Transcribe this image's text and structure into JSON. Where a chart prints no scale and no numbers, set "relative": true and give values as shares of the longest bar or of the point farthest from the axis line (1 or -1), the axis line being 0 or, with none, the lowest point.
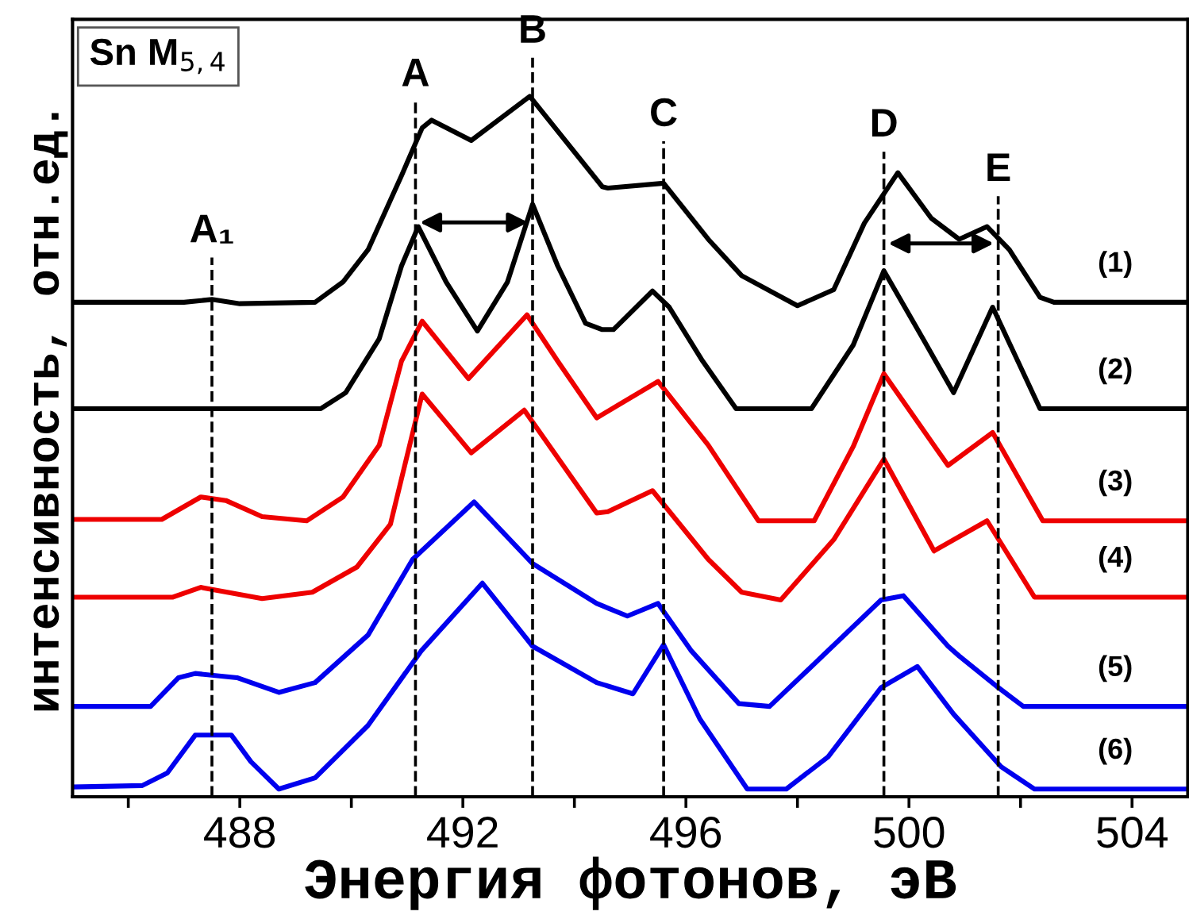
{
  "chart_data": {
    "type": "line",
    "relative": true,
    "xlabel": "Энергия фотонов, эВ",
    "ylabel": "интенсивность, отн.ед.",
    "annotations": [
      "Sn M$_{5,4}$"
    ],
    "xlim": [
      485,
      505
    ],
    "xticks": [
      {
        "value": 486,
        "label": null
      },
      488,
      {
        "value": 490,
        "label": null
      },
      492,
      {
        "value": 494,
        "label": null
      },
      496,
      {
        "value": 498,
        "label": null
      },
      500,
      {
        "value": 502,
        "label": null
      },
      504
    ],
    "tick_labels": "x",
    "grid": false,
    "legend": false,
    "marker": "none",
    "line_style": "solid",
    "ref_lines": [
      {
        "axis": "x",
        "value": 487.5,
        "label": "A₁",
        "line_style": "dashed",
        "color": "#000000"
      },
      {
        "axis": "x",
        "value": 491.15,
        "label": "A",
        "line_style": "dashed",
        "color": "#000000"
      },
      {
        "axis": "x",
        "value": 493.25,
        "label": "B",
        "line_style": "dashed",
        "color": "#000000"
      },
      {
        "axis": "x",
        "value": 495.6,
        "label": "C",
        "line_style": "dashed",
        "color": "#000000"
      },
      {
        "axis": "x",
        "value": 499.55,
        "label": "D",
        "line_style": "dashed",
        "color": "#000000"
      },
      {
        "axis": "x",
        "value": 501.6,
        "label": "E",
        "line_style": "dashed",
        "color": "#000000"
      }
    ],
    "series": [
      {
        "name": "(1)",
        "color": "#000000",
        "x": [
          485.0,
          487.0,
          487.5,
          488.0,
          489.35,
          489.85,
          490.3,
          490.9,
          491.27,
          491.44,
          492.15,
          493.2,
          494.5,
          494.6,
          495.6,
          496.4,
          497.0,
          498.0,
          498.65,
          499.2,
          499.8,
          500.4,
          500.9,
          501.4,
          501.8,
          502.35,
          502.6,
          505.0
        ],
        "values": [
          0.706,
          0.706,
          0.71,
          0.704,
          0.706,
          0.735,
          0.781,
          0.887,
          0.955,
          0.966,
          0.937,
          1.0,
          0.871,
          0.869,
          0.876,
          0.796,
          0.744,
          0.701,
          0.724,
          0.819,
          0.891,
          0.826,
          0.796,
          0.814,
          0.781,
          0.713,
          0.706,
          0.706
        ]
      },
      {
        "name": "(2)",
        "color": "#000000",
        "x": [
          485.0,
          489.45,
          489.9,
          490.5,
          490.9,
          491.2,
          491.7,
          492.26,
          492.8,
          493.25,
          493.7,
          494.2,
          494.5,
          494.7,
          495.4,
          495.7,
          496.3,
          496.9,
          498.25,
          499.0,
          499.55,
          500.25,
          500.8,
          501.5,
          502.35,
          505.0
        ],
        "values": [
          0.554,
          0.554,
          0.577,
          0.654,
          0.758,
          0.814,
          0.735,
          0.665,
          0.735,
          0.846,
          0.758,
          0.676,
          0.667,
          0.667,
          0.722,
          0.699,
          0.622,
          0.554,
          0.554,
          0.645,
          0.751,
          0.654,
          0.577,
          0.699,
          0.554,
          0.554
        ]
      },
      {
        "name": "(3)",
        "color": "#ee0000",
        "x": [
          485.0,
          486.6,
          487.3,
          487.75,
          488.4,
          489.2,
          489.85,
          490.5,
          490.9,
          491.27,
          492.1,
          493.15,
          493.7,
          494.4,
          495.5,
          496.4,
          497.3,
          498.3,
          499.0,
          499.55,
          500.7,
          501.5,
          502.4,
          505.0
        ],
        "values": [
          0.396,
          0.396,
          0.428,
          0.423,
          0.4,
          0.394,
          0.428,
          0.502,
          0.622,
          0.679,
          0.597,
          0.688,
          0.622,
          0.541,
          0.593,
          0.502,
          0.394,
          0.394,
          0.5,
          0.604,
          0.473,
          0.52,
          0.394,
          0.394
        ]
      },
      {
        "name": "(4)",
        "color": "#ee0000",
        "x": [
          485.0,
          486.8,
          487.3,
          488.4,
          489.3,
          490.1,
          490.7,
          491.27,
          492.15,
          493.1,
          494.4,
          494.6,
          495.4,
          496.4,
          497.0,
          497.7,
          498.65,
          499.55,
          500.45,
          501.4,
          502.25,
          505.0
        ],
        "values": [
          0.285,
          0.285,
          0.299,
          0.283,
          0.292,
          0.328,
          0.389,
          0.575,
          0.491,
          0.552,
          0.405,
          0.407,
          0.437,
          0.339,
          0.292,
          0.281,
          0.367,
          0.482,
          0.351,
          0.394,
          0.285,
          0.285
        ]
      },
      {
        "name": "(5)",
        "color": "#0000ee",
        "x": [
          485.0,
          486.4,
          486.9,
          487.2,
          487.95,
          488.7,
          489.35,
          490.3,
          491.1,
          492.2,
          493.25,
          494.4,
          494.95,
          495.5,
          496.1,
          496.95,
          497.5,
          498.45,
          499.5,
          499.9,
          500.7,
          500.9,
          501.6,
          502.05,
          505.0
        ],
        "values": [
          0.129,
          0.129,
          0.17,
          0.176,
          0.17,
          0.149,
          0.163,
          0.231,
          0.339,
          0.421,
          0.333,
          0.276,
          0.258,
          0.276,
          0.208,
          0.133,
          0.129,
          0.201,
          0.281,
          0.287,
          0.215,
          0.201,
          0.156,
          0.129,
          0.129
        ]
      },
      {
        "name": "(6)",
        "color": "#0000ee",
        "x": [
          485.0,
          486.25,
          486.7,
          487.2,
          487.85,
          488.2,
          488.7,
          489.35,
          490.3,
          491.25,
          492.35,
          493.25,
          494.4,
          495.05,
          495.6,
          496.25,
          497.1,
          497.8,
          498.55,
          499.5,
          500.15,
          500.8,
          501.65,
          502.25,
          505.0
        ],
        "values": [
          0.014,
          0.016,
          0.034,
          0.088,
          0.088,
          0.05,
          0.011,
          0.027,
          0.102,
          0.208,
          0.305,
          0.215,
          0.163,
          0.147,
          0.217,
          0.111,
          0.011,
          0.011,
          0.057,
          0.156,
          0.186,
          0.118,
          0.043,
          0.011,
          0.011
        ]
      }
    ]
  }
}
